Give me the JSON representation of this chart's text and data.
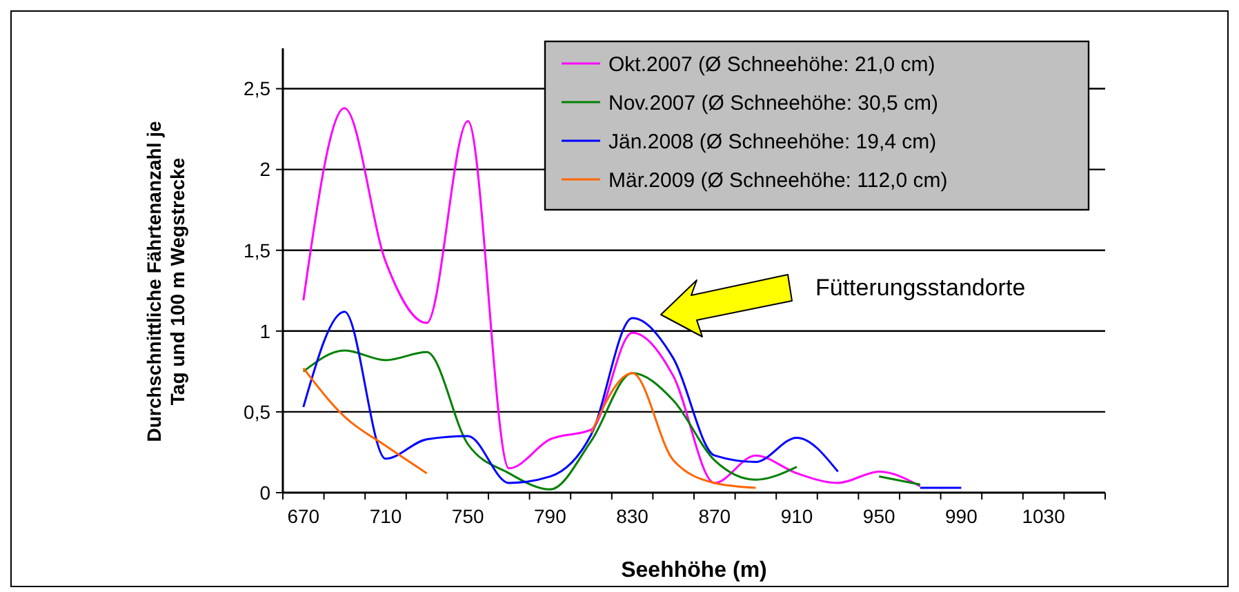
{
  "chart_data": {
    "type": "line",
    "xlabel": "Seehhöhe (m)",
    "ylabel": "Durchschnittliche Fährtenanzahl je Tag und 100 m Wegstrecke",
    "categories": [
      "670",
      null,
      "710",
      null,
      "750",
      null,
      "790",
      null,
      "830",
      null,
      "870",
      null,
      "910",
      null,
      "950",
      null,
      "990",
      null,
      "1030",
      null
    ],
    "series": [
      {
        "name": "Okt.2007 (Ø Schneehöhe: 21,0 cm)",
        "color": "#ff00ff",
        "values": [
          1.19,
          2.38,
          1.43,
          1.05,
          2.3,
          0.15,
          0.33,
          0.39,
          0.99,
          0.72,
          0.06,
          0.23,
          0.12,
          0.06,
          0.13,
          0.04,
          null,
          null,
          null,
          null
        ]
      },
      {
        "name": "Nov.2007 (Ø Schneehöhe: 30,5 cm)",
        "color": "#008000",
        "values": [
          0.75,
          0.88,
          0.82,
          0.87,
          0.3,
          0.12,
          0.02,
          0.32,
          0.74,
          0.57,
          0.2,
          0.08,
          0.16,
          null,
          0.1,
          0.05,
          null,
          null,
          null,
          null
        ]
      },
      {
        "name": "Jän.2008 (Ø Schneehöhe: 19,4 cm)",
        "color": "#0000ff",
        "values": [
          0.53,
          1.12,
          0.21,
          0.33,
          0.35,
          0.06,
          0.1,
          0.36,
          1.08,
          0.83,
          0.23,
          0.19,
          0.34,
          0.13,
          null,
          0.03,
          0.03,
          null,
          null,
          null
        ]
      },
      {
        "name": "Mär.2009 (Ø Schneehöhe: 112,0 cm)",
        "color": "#ff6600",
        "values": [
          0.77,
          0.47,
          0.29,
          0.12,
          null,
          null,
          null,
          0.37,
          0.74,
          0.2,
          0.06,
          0.03,
          null,
          null,
          null,
          null,
          null,
          null,
          null,
          null
        ]
      }
    ],
    "ylim": [
      0,
      2.75
    ],
    "yticks": [
      0,
      {
        "value": 0.5,
        "label": "0,5"
      },
      1,
      {
        "value": 1.5,
        "label": "1,5"
      },
      2,
      {
        "value": 2.5,
        "label": "2,5"
      }
    ],
    "grid": "y",
    "legend": "top right",
    "marker": "none",
    "line_style": "solid",
    "annotations": [
      "Fütterungsstandorte"
    ]
  }
}
